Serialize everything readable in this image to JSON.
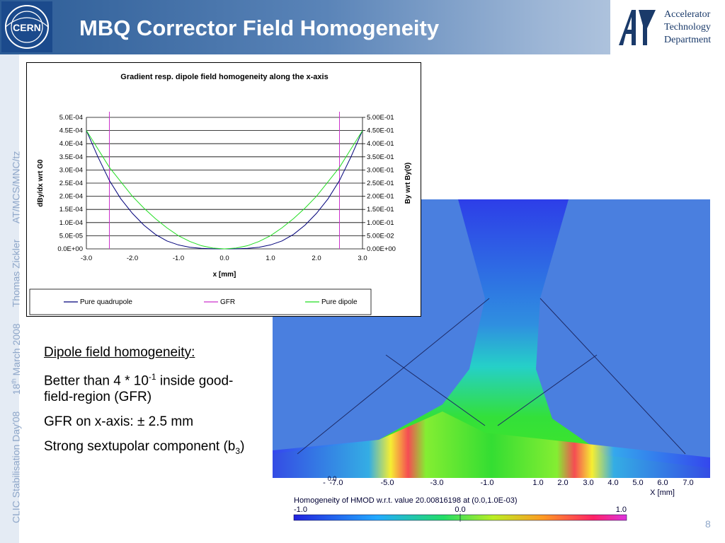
{
  "slide": {
    "title": "MBQ Corrector Field Homogeneity",
    "logo_left": "CERN",
    "logo_right": {
      "line1": "Accelerator",
      "line2": "Technology",
      "line3": "Department"
    },
    "sidebar": {
      "event": "CLIC Stabilisation Day'08",
      "date_day": "18",
      "date_sup": "th",
      "date_rest": " March 2008",
      "author": "Thomas Zickler",
      "group": "AT/MCS/MNC/tz"
    },
    "page_number": "8"
  },
  "body": {
    "heading": "Dipole field homogeneity:",
    "p1_a": "Better than 4 * 10",
    "p1_sup": "-1",
    "p1_b": " inside good-field-region (GFR)",
    "p2": "GFR on x-axis: ± 2.5 mm",
    "p3_a": "Strong sextupolar component (b",
    "p3_sub": "3",
    "p3_b": ")"
  },
  "fem": {
    "x_ticks": [
      "-7.0",
      "-5.0",
      "-3.0",
      "-1.0",
      "1.0",
      "2.0",
      "3.0",
      "4.0",
      "5.0",
      "6.0",
      "7.0"
    ],
    "x_label": "X [mm]",
    "origin_label": "0.0",
    "caption": "Homogeneity of HMOD w.r.t. value 20.00816198 at (0.0,1.0E-03)",
    "scale": [
      "-1.0",
      "0.0",
      "1.0"
    ]
  },
  "chart_data": {
    "type": "line",
    "title": "Gradient resp. dipole field homogeneity along the x-axis",
    "xlabel": "x [mm]",
    "ylabel": "dBy/dx wrt G0",
    "y2label": "By wrt By(0)",
    "xlim": [
      -3.0,
      3.0
    ],
    "ylim": [
      0,
      0.0005
    ],
    "y2lim": [
      0,
      0.5
    ],
    "x_tick_labels": [
      "-3.0",
      "-2.0",
      "-1.0",
      "0.0",
      "1.0",
      "2.0",
      "3.0"
    ],
    "y_tick_labels": [
      "0.0E+00",
      "5.0E-05",
      "1.0E-04",
      "1.5E-04",
      "2.0E-04",
      "2.5E-04",
      "3.0E-04",
      "3.5E-04",
      "4.0E-04",
      "4.5E-04",
      "5.0E-04"
    ],
    "y2_tick_labels": [
      "0.00E+00",
      "5.00E-02",
      "1.00E-01",
      "1.50E-01",
      "2.00E-01",
      "2.50E-01",
      "3.00E-01",
      "3.50E-01",
      "4.00E-01",
      "4.50E-01",
      "5.00E-01"
    ],
    "grid": true,
    "legend_position": "bottom",
    "series": [
      {
        "name": "Pure quadrupole",
        "color": "#00007a",
        "axis": "left",
        "x": [
          -3.0,
          -2.75,
          -2.5,
          -2.25,
          -2.0,
          -1.75,
          -1.5,
          -1.25,
          -1.0,
          -0.75,
          -0.5,
          -0.25,
          0.0,
          0.25,
          0.5,
          0.75,
          1.0,
          1.25,
          1.5,
          1.75,
          2.0,
          2.25,
          2.5,
          2.75,
          3.0
        ],
        "y": [
          0.00045,
          0.00035,
          0.00026,
          0.00019,
          0.000135,
          9e-05,
          5.5e-05,
          3e-05,
          1.5e-05,
          6e-06,
          2e-06,
          5e-07,
          0,
          5e-07,
          2e-06,
          6e-06,
          1.5e-05,
          3e-05,
          5.5e-05,
          9e-05,
          0.000135,
          0.00019,
          0.00026,
          0.00035,
          0.00045
        ]
      },
      {
        "name": "GFR",
        "color": "#cc33cc",
        "axis": "left",
        "x": [
          -2.5,
          2.5
        ],
        "vertical_lines": true
      },
      {
        "name": "Pure dipole",
        "color": "#22dd22",
        "axis": "right",
        "x": [
          -3.0,
          -2.75,
          -2.5,
          -2.25,
          -2.0,
          -1.75,
          -1.5,
          -1.25,
          -1.0,
          -0.75,
          -0.5,
          -0.25,
          0.0,
          0.25,
          0.5,
          0.75,
          1.0,
          1.25,
          1.5,
          1.75,
          2.0,
          2.25,
          2.5,
          2.75,
          3.0
        ],
        "y": [
          0.45,
          0.38,
          0.31,
          0.255,
          0.2,
          0.155,
          0.115,
          0.08,
          0.05,
          0.028,
          0.012,
          0.003,
          0,
          0.003,
          0.012,
          0.028,
          0.05,
          0.08,
          0.115,
          0.155,
          0.2,
          0.255,
          0.31,
          0.38,
          0.45
        ]
      }
    ]
  }
}
